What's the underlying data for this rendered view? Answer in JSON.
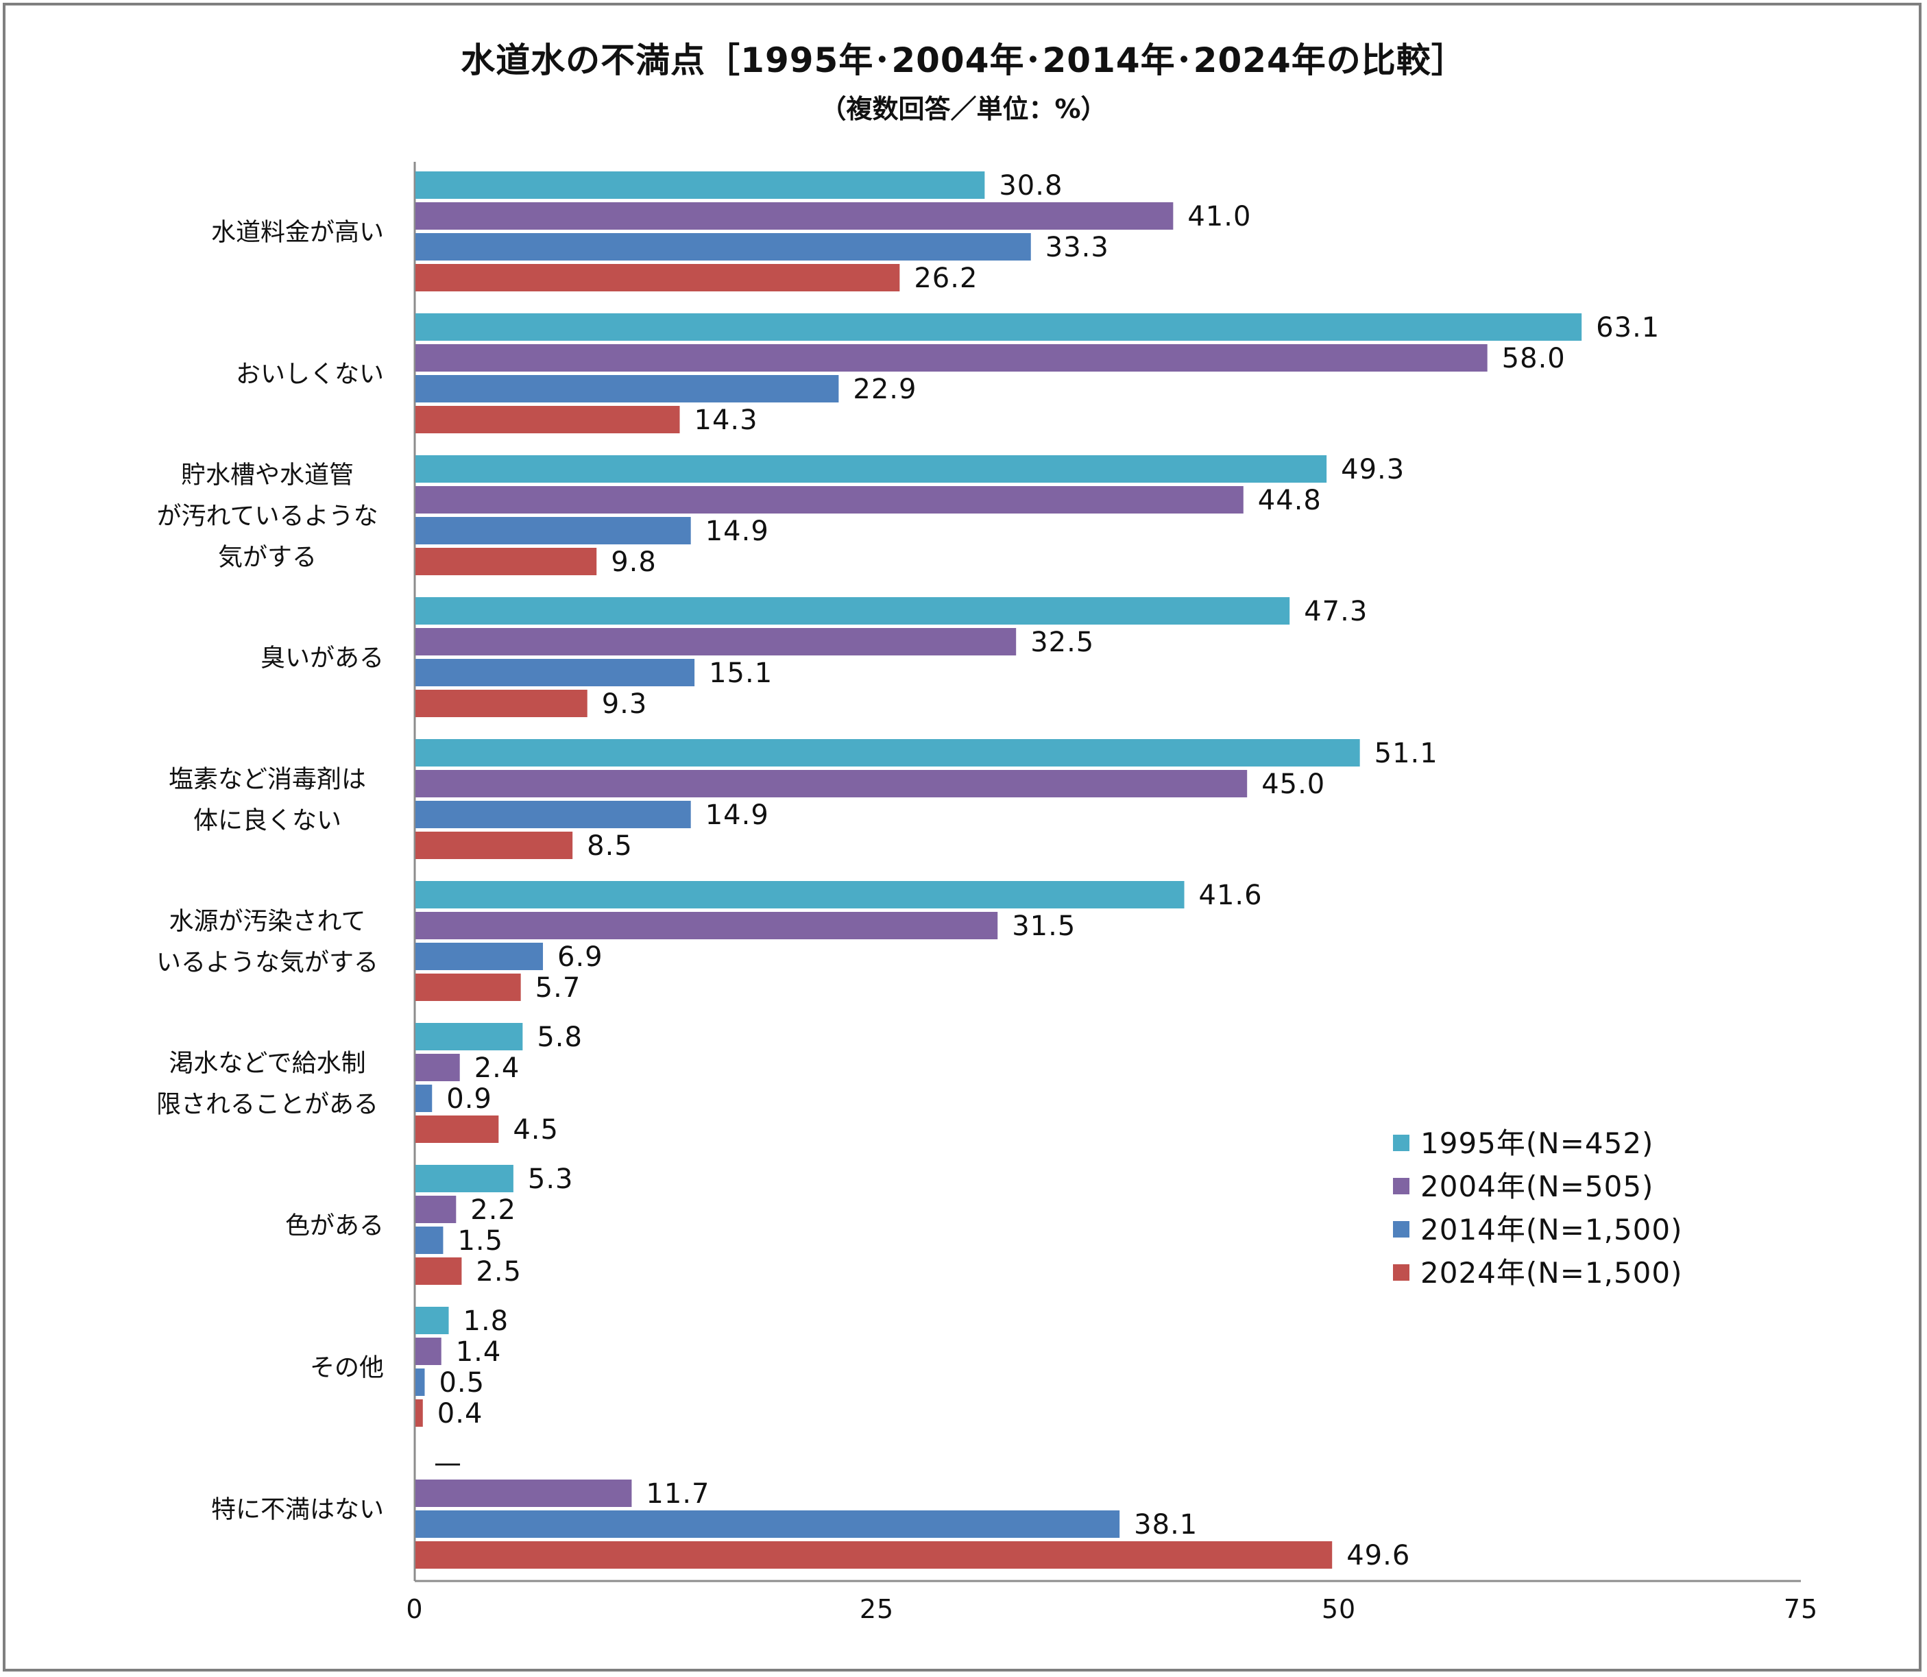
{
  "chart_data": {
    "type": "bar",
    "orientation": "horizontal",
    "title": "水道水の不満点［1995年･2004年･2014年･2024年の比較］",
    "subtitle": "（複数回答／単位：%）",
    "xlim": [
      0,
      75
    ],
    "xticks": [
      0,
      25,
      50,
      75
    ],
    "categories": [
      "水道料金が高い",
      "おいしくない",
      "貯水槽や水道管が汚れているような気がする",
      "臭いがある",
      "塩素など消毒剤は体に良くない",
      "水源が汚染されているような気がする",
      "渇水などで給水制限されることがある",
      "色がある",
      "その他",
      "特に不満はない"
    ],
    "category_lines": [
      [
        "水道料金が高い"
      ],
      [
        "おいしくない"
      ],
      [
        "貯水槽や水道管",
        "が汚れているような",
        "気がする"
      ],
      [
        "臭いがある"
      ],
      [
        "塩素など消毒剤は",
        "体に良くない"
      ],
      [
        "水源が汚染されて",
        "いるような気がする"
      ],
      [
        "渇水などで給水制",
        "限されることがある"
      ],
      [
        "色がある"
      ],
      [
        "その他"
      ],
      [
        "特に不満はない"
      ]
    ],
    "series": [
      {
        "name": "1995年(N=452)",
        "color": "#4BACC6",
        "values": [
          30.8,
          63.1,
          49.3,
          47.3,
          51.1,
          41.6,
          5.8,
          5.3,
          1.8,
          null
        ],
        "labels": [
          "30.8",
          "63.1",
          "49.3",
          "47.3",
          "51.1",
          "41.6",
          "5.8",
          "5.3",
          "1.8",
          "—"
        ]
      },
      {
        "name": "2004年(N=505)",
        "color": "#8064A2",
        "values": [
          41.0,
          58.0,
          44.8,
          32.5,
          45.0,
          31.5,
          2.4,
          2.2,
          1.4,
          11.7
        ],
        "labels": [
          "41.0",
          "58.0",
          "44.8",
          "32.5",
          "45.0",
          "31.5",
          "2.4",
          "2.2",
          "1.4",
          "11.7"
        ]
      },
      {
        "name": "2014年(N=1,500)",
        "color": "#4F81BD",
        "values": [
          33.3,
          22.9,
          14.9,
          15.1,
          14.9,
          6.9,
          0.9,
          1.5,
          0.5,
          38.1
        ],
        "labels": [
          "33.3",
          "22.9",
          "14.9",
          "15.1",
          "14.9",
          "6.9",
          "0.9",
          "1.5",
          "0.5",
          "38.1"
        ]
      },
      {
        "name": "2024年(N=1,500)",
        "color": "#C0504D",
        "values": [
          26.2,
          14.3,
          9.8,
          9.3,
          8.5,
          5.7,
          4.5,
          2.5,
          0.4,
          49.6
        ],
        "labels": [
          "26.2",
          "14.3",
          "9.8",
          "9.3",
          "8.5",
          "5.7",
          "4.5",
          "2.5",
          "0.4",
          "49.6"
        ]
      }
    ],
    "legend_position": "right"
  }
}
